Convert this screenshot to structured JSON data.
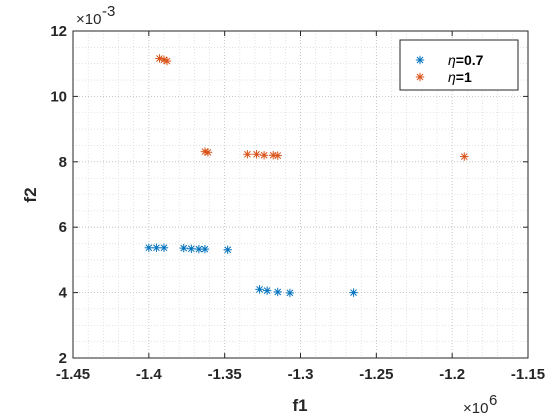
{
  "chart_data": {
    "type": "scatter",
    "xlabel": "f1",
    "ylabel": "f2",
    "x_multiplier_label": "×10",
    "x_multiplier_exp": "6",
    "y_multiplier_label": "×10",
    "y_multiplier_exp": "-3",
    "xlim": [
      -1.45,
      -1.15
    ],
    "ylim": [
      2,
      12
    ],
    "xticks": [
      -1.45,
      -1.4,
      -1.35,
      -1.3,
      -1.25,
      -1.2,
      -1.15
    ],
    "xtick_labels": [
      "-1.45",
      "-1.4",
      "-1.35",
      "-1.3",
      "-1.25",
      "-1.2",
      "-1.15"
    ],
    "yticks": [
      2,
      4,
      6,
      8,
      10,
      12
    ],
    "ytick_labels": [
      "2",
      "4",
      "6",
      "8",
      "10",
      "12"
    ],
    "grid": "on (major and minor, dotted)",
    "legend_position": "top-right",
    "marker": "asterisk",
    "series": [
      {
        "name": "η=0.7",
        "legend_symbol": "η",
        "legend_rest": "=0.7",
        "color": "#0072BD",
        "x": [
          -1.4,
          -1.395,
          -1.39,
          -1.377,
          -1.372,
          -1.367,
          -1.363,
          -1.348,
          -1.327,
          -1.322,
          -1.315,
          -1.307,
          -1.265
        ],
        "y": [
          5.37,
          5.37,
          5.37,
          5.36,
          5.34,
          5.33,
          5.33,
          5.31,
          4.1,
          4.06,
          4.02,
          3.99,
          4.0
        ]
      },
      {
        "name": "η=1",
        "legend_symbol": "η",
        "legend_rest": "=1",
        "color": "#D95319",
        "x": [
          -1.393,
          -1.39,
          -1.388,
          -1.363,
          -1.361,
          -1.335,
          -1.329,
          -1.324,
          -1.318,
          -1.315,
          -1.192
        ],
        "y": [
          11.16,
          11.12,
          11.08,
          8.31,
          8.29,
          8.23,
          8.23,
          8.2,
          8.2,
          8.19,
          8.16
        ]
      }
    ]
  }
}
